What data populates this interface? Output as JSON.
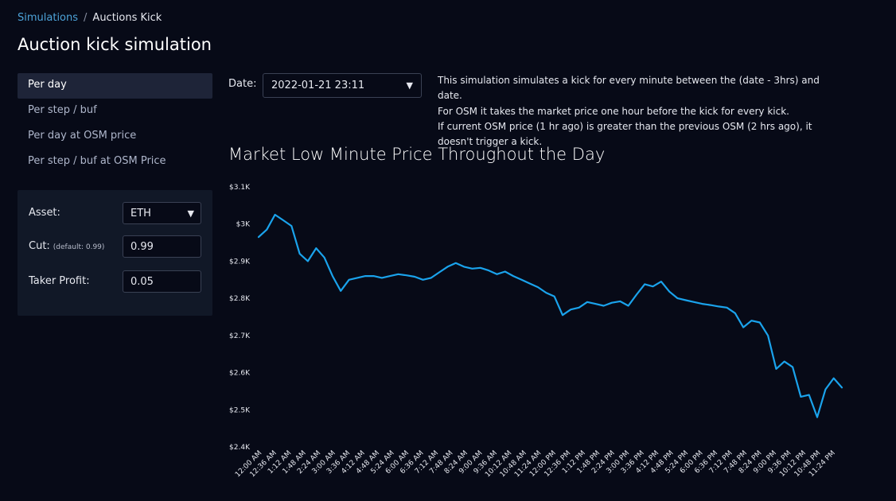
{
  "breadcrumb": {
    "parent": "Simulations",
    "separator": "/",
    "current": "Auctions Kick"
  },
  "page": {
    "title": "Auction kick simulation"
  },
  "nav": {
    "items": [
      {
        "label": "Per day",
        "active": true
      },
      {
        "label": "Per step / buf",
        "active": false
      },
      {
        "label": "Per day at OSM price",
        "active": false
      },
      {
        "label": "Per step / buf at OSM Price",
        "active": false
      }
    ]
  },
  "params": {
    "asset_label": "Asset:",
    "asset_value": "ETH",
    "cut_label": "Cut:",
    "cut_hint": "(default: 0.99)",
    "cut_value": "0.99",
    "taker_label": "Taker Profit:",
    "taker_value": "0.05"
  },
  "date": {
    "label": "Date:",
    "value": "2022-01-21 23:11"
  },
  "description": {
    "line1": "This simulation simulates a kick for every minute between the (date - 3hrs) and date.",
    "line2": "For OSM it takes the market price one hour before the kick for every kick.",
    "line3": "If current OSM price (1 hr ago) is greater than the previous OSM (2 hrs ago), it doesn't trigger a kick."
  },
  "colors": {
    "background": "#070a17",
    "line": "#1aa3ec",
    "link": "#4da3d9",
    "active_nav": "#1e2438",
    "panel": "#111827"
  },
  "chart_data": {
    "type": "line",
    "title": "Market Low Minute Price Throughout the Day",
    "ylim": [
      2400,
      3100
    ],
    "yticks": [
      2400,
      2500,
      2600,
      2700,
      2800,
      2900,
      3000,
      3100
    ],
    "ytick_labels": [
      "$2.4K",
      "$2.5K",
      "$2.6K",
      "$2.7K",
      "$2.8K",
      "$2.9K",
      "$3K",
      "$3.1K"
    ],
    "xtick_labels": [
      "12:00 AM",
      "12:36 AM",
      "1:12 AM",
      "1:48 AM",
      "2:24 AM",
      "3:00 AM",
      "3:36 AM",
      "4:12 AM",
      "4:48 AM",
      "5:24 AM",
      "6:00 AM",
      "6:36 AM",
      "7:12 AM",
      "7:48 AM",
      "8:24 AM",
      "9:00 AM",
      "9:36 AM",
      "10:12 AM",
      "10:48 AM",
      "11:24 AM",
      "12:00 PM",
      "12:36 PM",
      "1:12 PM",
      "1:48 PM",
      "2:24 PM",
      "3:00 PM",
      "3:36 PM",
      "4:12 PM",
      "4:48 PM",
      "5:24 PM",
      "6:00 PM",
      "6:36 PM",
      "7:12 PM",
      "7:48 PM",
      "8:24 PM",
      "9:00 PM",
      "9:36 PM",
      "10:12 PM",
      "10:48 PM",
      "11:24 PM"
    ],
    "series": [
      {
        "x": [
          "12:00 AM",
          "12:20 AM",
          "12:40 AM",
          "1:00 AM",
          "1:20 AM",
          "1:40 AM",
          "2:00 AM",
          "2:20 AM",
          "2:40 AM",
          "3:00 AM",
          "3:20 AM",
          "3:40 AM",
          "4:00 AM",
          "4:20 AM",
          "4:40 AM",
          "5:00 AM",
          "5:20 AM",
          "5:40 AM",
          "6:00 AM",
          "6:20 AM",
          "6:40 AM",
          "7:00 AM",
          "7:20 AM",
          "7:40 AM",
          "8:00 AM",
          "8:20 AM",
          "8:40 AM",
          "9:00 AM",
          "9:20 AM",
          "9:40 AM",
          "10:00 AM",
          "10:20 AM",
          "10:40 AM",
          "11:00 AM",
          "11:20 AM",
          "11:40 AM",
          "12:00 PM",
          "12:20 PM",
          "12:40 PM",
          "1:00 PM",
          "1:20 PM",
          "1:40 PM",
          "2:00 PM",
          "2:20 PM",
          "2:40 PM",
          "3:00 PM",
          "3:20 PM",
          "3:40 PM",
          "4:00 PM",
          "4:20 PM",
          "4:40 PM",
          "5:00 PM",
          "5:20 PM",
          "5:40 PM",
          "6:00 PM",
          "6:20 PM",
          "6:40 PM",
          "7:00 PM",
          "7:20 PM",
          "7:40 PM",
          "8:00 PM",
          "8:20 PM",
          "8:40 PM",
          "9:00 PM",
          "9:20 PM",
          "9:40 PM",
          "10:00 PM",
          "10:20 PM",
          "10:40 PM",
          "11:00 PM",
          "11:20 PM",
          "11:40 PM"
        ],
        "values": [
          2965,
          2985,
          3025,
          3010,
          2995,
          2920,
          2900,
          2935,
          2910,
          2860,
          2820,
          2850,
          2855,
          2860,
          2860,
          2855,
          2860,
          2865,
          2862,
          2858,
          2850,
          2855,
          2870,
          2885,
          2895,
          2885,
          2880,
          2882,
          2875,
          2865,
          2872,
          2860,
          2850,
          2840,
          2830,
          2815,
          2805,
          2755,
          2770,
          2775,
          2790,
          2785,
          2780,
          2788,
          2792,
          2780,
          2810,
          2838,
          2832,
          2845,
          2818,
          2800,
          2795,
          2790,
          2785,
          2782,
          2778,
          2775,
          2760,
          2722,
          2740,
          2735,
          2700,
          2610,
          2630,
          2615,
          2535,
          2540,
          2480,
          2555,
          2585,
          2560
        ]
      }
    ]
  }
}
